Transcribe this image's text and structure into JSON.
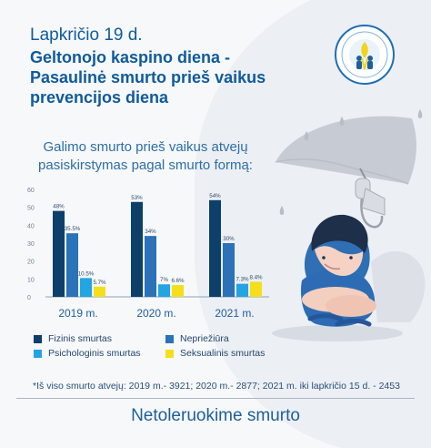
{
  "header": {
    "date": "Lapkričio 19 d.",
    "title_line1": "Geltonojo kaspino diena -",
    "title_line2": "Pasaulinė smurto prieš vaikus",
    "title_line3": "prevencijos diena"
  },
  "chart_data": {
    "type": "bar",
    "title_line1": "Galimo smurto prieš vaikus atvejų",
    "title_line2": "pasiskirstymas pagal smurto formą:",
    "categories": [
      "2019 m.",
      "2020 m.",
      "2021 m."
    ],
    "ylim": [
      0,
      60
    ],
    "yticks": [
      "60",
      "50",
      "40",
      "30",
      "20",
      "10",
      "0"
    ],
    "series": [
      {
        "name": "Fizinis smurtas",
        "color": "#0d3f6b",
        "values": [
          48,
          53,
          54
        ],
        "labels": [
          "48%",
          "53%",
          "54%"
        ]
      },
      {
        "name": "Nepriežiūra",
        "color": "#2b72b8",
        "values": [
          35.5,
          34,
          30
        ],
        "labels": [
          "35.5%",
          "34%",
          "30%"
        ]
      },
      {
        "name": "Psichologinis smurtas",
        "color": "#23a4e3",
        "values": [
          10.5,
          7,
          7.3
        ],
        "labels": [
          "10.5%",
          "7%",
          "7.3%"
        ]
      },
      {
        "name": "Seksualinis smurtas",
        "color": "#f4df1a",
        "values": [
          5.7,
          6.6,
          8.4
        ],
        "labels": [
          "5.7%",
          "6.6%",
          "8.4%"
        ]
      }
    ],
    "grid": false,
    "legend_position": "bottom"
  },
  "footnote": "*Iš viso smurto atvejų: 2019 m.- 3921; 2020 m.- 2877; 2021 m. iki lapkričio 15 d. - 2453",
  "slogan": "Netoleruokime smurto",
  "icons": {
    "logo": "yellow-ribbon-logo-icon",
    "illustration": "child-umbrella-illustration"
  }
}
